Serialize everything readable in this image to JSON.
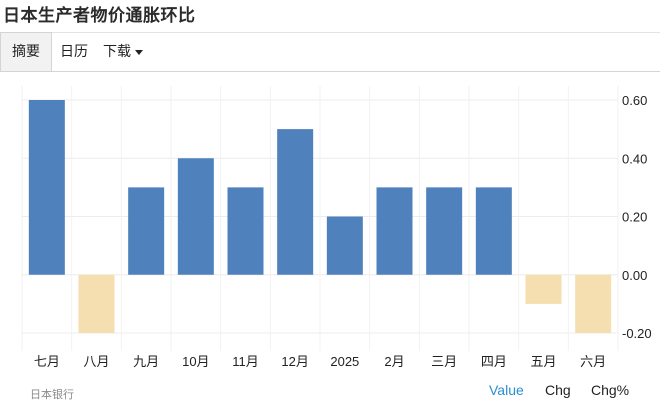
{
  "title": "日本生产者物价通胀环比",
  "tabs": [
    {
      "label": "摘要"
    },
    {
      "label": "日历"
    },
    {
      "label": "下载"
    }
  ],
  "source": "日本银行",
  "toggles": [
    {
      "label": "Value"
    },
    {
      "label": "Chg"
    },
    {
      "label": "Chg%"
    }
  ],
  "colors": {
    "positive": "#4f81bd",
    "negative": "#f5deb0",
    "active_toggle": "#2a8fd0",
    "grid": "#ececec"
  },
  "chart_data": {
    "type": "bar",
    "categories": [
      "七月",
      "八月",
      "九月",
      "10月",
      "11月",
      "12月",
      "2025",
      "2月",
      "三月",
      "四月",
      "五月",
      "六月"
    ],
    "values": [
      0.6,
      -0.2,
      0.3,
      0.4,
      0.3,
      0.5,
      0.2,
      0.3,
      0.3,
      0.3,
      -0.1,
      -0.2
    ],
    "y_ticks": [
      "0.60",
      "0.40",
      "0.20",
      "0.00",
      "-0.20"
    ],
    "ylim": [
      -0.2,
      0.6
    ],
    "y_axis_side": "right",
    "grid": true
  }
}
